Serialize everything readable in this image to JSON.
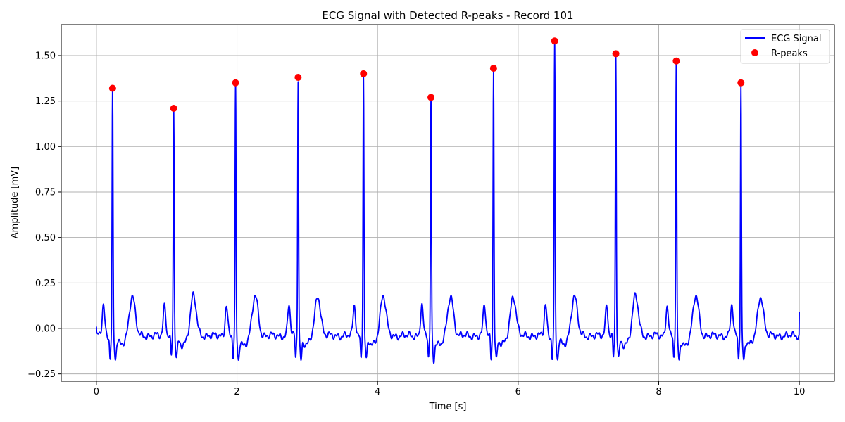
{
  "chart_data": {
    "type": "line",
    "title": "ECG Signal with Detected R-peaks - Record 101",
    "xlabel": "Time [s]",
    "ylabel": "Amplitude [mV]",
    "xlim": [
      -0.5,
      10.5
    ],
    "ylim": [
      -0.29,
      1.67
    ],
    "xticks": [
      0,
      2,
      4,
      6,
      8,
      10
    ],
    "xtick_labels": [
      "0",
      "2",
      "4",
      "6",
      "8",
      "10"
    ],
    "yticks": [
      -0.25,
      0.0,
      0.25,
      0.5,
      0.75,
      1.0,
      1.25,
      1.5
    ],
    "ytick_labels": [
      "−0.25",
      "0.00",
      "0.25",
      "0.50",
      "0.75",
      "1.00",
      "1.25",
      "1.50"
    ],
    "grid": true,
    "legend_position": "top-right",
    "series": [
      {
        "name": "ECG Signal",
        "kind": "line",
        "color": "#0000ff",
        "beats": [
          {
            "r": 0.23,
            "peak": 1.32
          },
          {
            "r": 1.1,
            "peak": 1.21
          },
          {
            "r": 1.98,
            "peak": 1.35
          },
          {
            "r": 2.87,
            "peak": 1.38
          },
          {
            "r": 3.8,
            "peak": 1.4
          },
          {
            "r": 4.76,
            "peak": 1.27
          },
          {
            "r": 5.65,
            "peak": 1.43
          },
          {
            "r": 6.52,
            "peak": 1.58
          },
          {
            "r": 7.39,
            "peak": 1.51
          },
          {
            "r": 8.25,
            "peak": 1.47
          },
          {
            "r": 9.17,
            "peak": 1.35
          }
        ],
        "start": {
          "x": 0.0,
          "y": 0.01
        },
        "end": {
          "x": 10.0,
          "y": 0.09
        }
      },
      {
        "name": "R-peaks",
        "kind": "scatter",
        "color": "#ff0000",
        "x": [
          0.23,
          1.1,
          1.98,
          2.87,
          3.8,
          4.76,
          5.65,
          6.52,
          7.39,
          8.25,
          9.17
        ],
        "y": [
          1.32,
          1.21,
          1.35,
          1.38,
          1.4,
          1.27,
          1.43,
          1.58,
          1.51,
          1.47,
          1.35
        ]
      }
    ]
  }
}
